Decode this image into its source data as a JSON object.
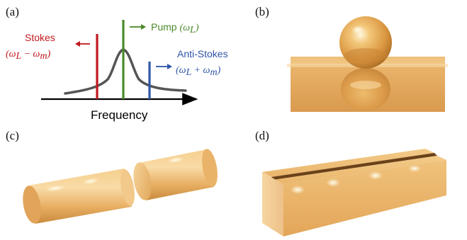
{
  "panels": {
    "a": {
      "label": "(a)"
    },
    "b": {
      "label": "(b)"
    },
    "c": {
      "label": "(c)"
    },
    "d": {
      "label": "(d)"
    }
  },
  "spectrum": {
    "xlabel": "Frequency",
    "pump": {
      "name": "Pump",
      "expr": "(ω",
      "sub": "L",
      "close": ")",
      "color": "#4a8a2a"
    },
    "stokes": {
      "name": "Stokes",
      "expr": "(ω",
      "sub1": "L",
      "op": " − ω",
      "sub2": "m",
      "close": ")",
      "color": "#c0181e"
    },
    "antistokes": {
      "name": "Anti-Stokes",
      "expr": "(ω",
      "sub1": "L",
      "op": " + ω",
      "sub2": "m",
      "close": ")",
      "color": "#2f56a8"
    },
    "curve_color": "#555555"
  }
}
